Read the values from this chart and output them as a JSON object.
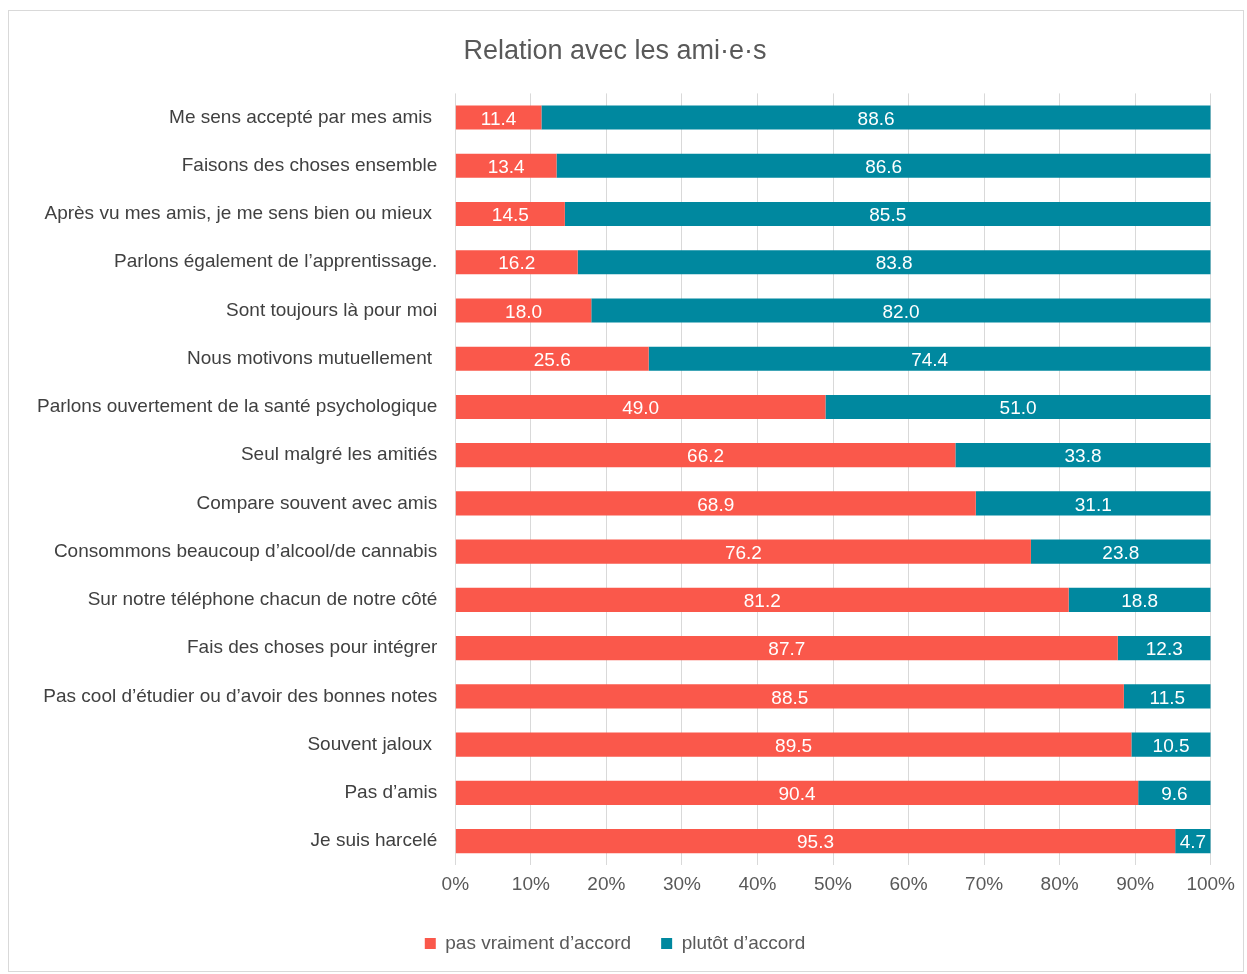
{
  "chart_data": {
    "type": "bar",
    "orientation": "horizontal",
    "stacked": true,
    "title": "Relation avec les ami·e·s",
    "categories": [
      "Me sens accepté par mes amis ",
      "Faisons des choses ensemble",
      "Après vu mes amis, je me sens bien ou mieux ",
      "Parlons également de l’apprentissage.",
      "Sont toujours là pour moi",
      "Nous motivons mutuellement ",
      "Parlons ouvertement de la santé psychologique",
      "Seul malgré les amitiés",
      "Compare souvent avec amis",
      "Consommons beaucoup d’alcool/de cannabis",
      "Sur notre téléphone chacun de notre côté",
      "Fais des choses pour intégrer",
      "Pas cool d’étudier ou d’avoir des bonnes notes",
      "Souvent jaloux ",
      "Pas d’amis",
      "Je suis harcelé"
    ],
    "series": [
      {
        "name": "pas vraiment d’accord",
        "color": "#fa584b",
        "values": [
          11.4,
          13.4,
          14.5,
          16.2,
          18.0,
          25.6,
          49.0,
          66.2,
          68.9,
          76.2,
          81.2,
          87.7,
          88.5,
          89.5,
          90.4,
          95.3
        ],
        "value_labels": [
          "11.4",
          "13.4",
          "14.5",
          "16.2",
          "18.0",
          "25.6",
          "49.0",
          "66.2",
          "68.9",
          "76.2",
          "81.2",
          "87.7",
          "88.5",
          "89.5",
          "90.4",
          "95.3"
        ]
      },
      {
        "name": "plutôt d’accord",
        "color": "#00889f",
        "values": [
          88.6,
          86.6,
          85.5,
          83.8,
          82.0,
          74.4,
          51.0,
          33.8,
          31.1,
          23.8,
          18.8,
          12.3,
          11.5,
          10.5,
          9.6,
          4.7
        ],
        "value_labels": [
          "88.6",
          "86.6",
          "85.5",
          "83.8",
          "82.0",
          "74.4",
          "51.0",
          "33.8",
          "31.1",
          "23.8",
          "18.8",
          "12.3",
          "11.5",
          "10.5",
          "9.6",
          "4.7"
        ]
      }
    ],
    "xlim": [
      0,
      100
    ],
    "xticks": [
      {
        "value": 0,
        "label": "0%"
      },
      {
        "value": 10,
        "label": "10%"
      },
      {
        "value": 20,
        "label": "20%"
      },
      {
        "value": 30,
        "label": "30%"
      },
      {
        "value": 40,
        "label": "40%"
      },
      {
        "value": 50,
        "label": "50%"
      },
      {
        "value": 60,
        "label": "60%"
      },
      {
        "value": 70,
        "label": "70%"
      },
      {
        "value": 80,
        "label": "80%"
      },
      {
        "value": 90,
        "label": "90%"
      },
      {
        "value": 100,
        "label": "100%"
      }
    ],
    "grid": "x",
    "legend": "bottom"
  }
}
